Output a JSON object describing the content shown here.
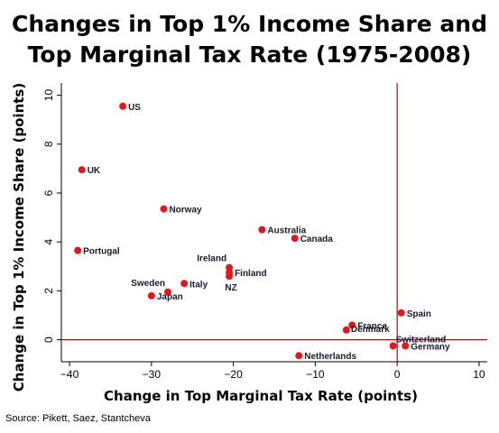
{
  "title_lines": [
    "Changes in Top 1% Income Share and",
    "Top Marginal Tax Rate (1975-2008)"
  ],
  "source": "Source: Pikett, Saez, Stantcheva",
  "chart_data": {
    "type": "scatter",
    "title": "Changes in Top 1% Income Share and Top Marginal Tax Rate (1975-2008)",
    "xlabel": "Change in Top Marginal Tax Rate (points)",
    "ylabel": "Change in Top 1% Income Share (points)",
    "xlim": [
      -41,
      11
    ],
    "ylim": [
      -0.9,
      10.5
    ],
    "xticks": [
      -40,
      -30,
      -20,
      -10,
      0,
      10
    ],
    "yticks": [
      0,
      2,
      4,
      6,
      8,
      10
    ],
    "xtick_labels": [
      "−40",
      "−30",
      "−20",
      "−10",
      "0",
      "10"
    ],
    "ytick_labels": [
      "0",
      "2",
      "4",
      "6",
      "8",
      "10"
    ],
    "reference_lines": {
      "x": 0,
      "y": 0,
      "color": "#8b1a1a"
    },
    "marker_color": "#e8141c",
    "grid": false,
    "points": [
      {
        "label": "US",
        "x": -33.5,
        "y": 9.55,
        "label_pos": "right"
      },
      {
        "label": "UK",
        "x": -38.5,
        "y": 6.95,
        "label_pos": "right"
      },
      {
        "label": "Norway",
        "x": -28.5,
        "y": 5.35,
        "label_pos": "right"
      },
      {
        "label": "Portugal",
        "x": -39,
        "y": 3.65,
        "label_pos": "right"
      },
      {
        "label": "Australia",
        "x": -16.5,
        "y": 4.5,
        "label_pos": "right"
      },
      {
        "label": "Canada",
        "x": -12.5,
        "y": 4.15,
        "label_pos": "right"
      },
      {
        "label": "Ireland",
        "x": -20.5,
        "y": 2.95,
        "label_pos": "above-left"
      },
      {
        "label": "Finland",
        "x": -20.5,
        "y": 2.75,
        "label_pos": "right"
      },
      {
        "label": "NZ",
        "x": -20.5,
        "y": 2.6,
        "label_pos": "below"
      },
      {
        "label": "Italy",
        "x": -26,
        "y": 2.3,
        "label_pos": "right"
      },
      {
        "label": "Sweden",
        "x": -28,
        "y": 1.95,
        "label_pos": "above-left"
      },
      {
        "label": "Japan",
        "x": -30,
        "y": 1.8,
        "label_pos": "right"
      },
      {
        "label": "Spain",
        "x": 0.5,
        "y": 1.1,
        "label_pos": "right"
      },
      {
        "label": "France",
        "x": -5.5,
        "y": 0.6,
        "label_pos": "right"
      },
      {
        "label": "Denmark",
        "x": -6.2,
        "y": 0.4,
        "label_pos": "right-shift"
      },
      {
        "label": "Switzerland",
        "x": -0.5,
        "y": -0.25,
        "label_pos": "above-right"
      },
      {
        "label": "Germany",
        "x": 1,
        "y": -0.25,
        "label_pos": "right"
      },
      {
        "label": "Netherlands",
        "x": -12,
        "y": -0.65,
        "label_pos": "right"
      }
    ]
  }
}
